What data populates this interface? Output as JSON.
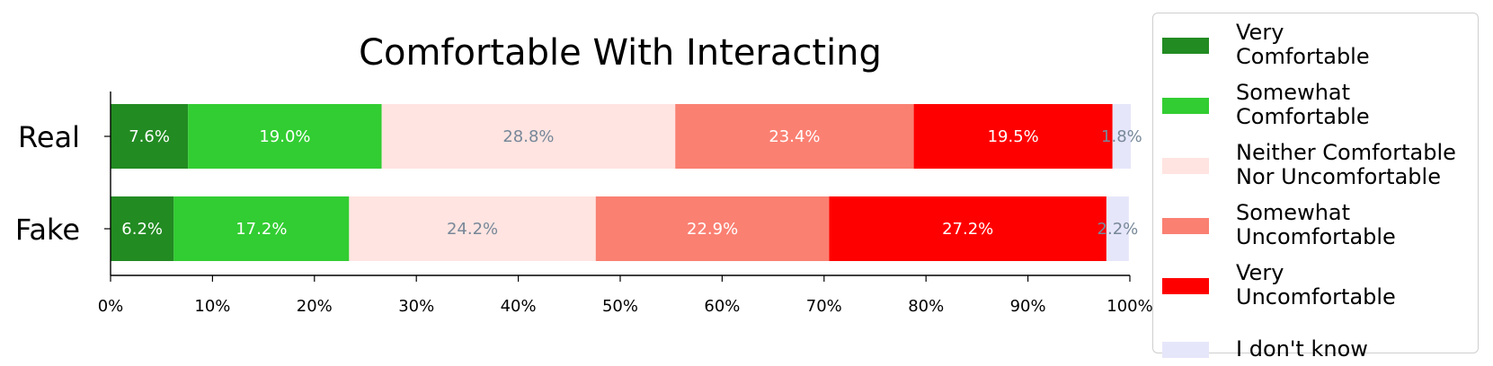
{
  "chart_data": {
    "type": "bar",
    "orientation": "horizontal",
    "stacked": true,
    "title": "Comfortable With Interacting",
    "categories": [
      "Real",
      "Fake"
    ],
    "xlim": [
      0,
      100
    ],
    "x_ticks": [
      "0%",
      "10%",
      "20%",
      "30%",
      "40%",
      "50%",
      "60%",
      "70%",
      "80%",
      "90%",
      "100%"
    ],
    "grid": false,
    "legend_position": "right",
    "series": [
      {
        "name": "Very\nComfortable",
        "color": "#228b22",
        "text_color": "#ffffff",
        "values": [
          7.6,
          6.2
        ],
        "labels": [
          "7.6%",
          "6.2%"
        ]
      },
      {
        "name": "Somewhat\nComfortable",
        "color": "#32cd32",
        "text_color": "#ffffff",
        "values": [
          19.0,
          17.2
        ],
        "labels": [
          "19.0%",
          "17.2%"
        ]
      },
      {
        "name": "Neither Comfortable\nNor Uncomfortable",
        "color": "#ffe4e1",
        "text_color": "#778899",
        "values": [
          28.8,
          24.2
        ],
        "labels": [
          "28.8%",
          "24.2%"
        ]
      },
      {
        "name": "Somewhat\nUncomfortable",
        "color": "#fa8072",
        "text_color": "#ffffff",
        "values": [
          23.4,
          22.9
        ],
        "labels": [
          "23.4%",
          "22.9%"
        ]
      },
      {
        "name": "Very\nUncomfortable",
        "color": "#ff0000",
        "text_color": "#ffffff",
        "values": [
          19.5,
          27.2
        ],
        "labels": [
          "19.5%",
          "27.2%"
        ]
      },
      {
        "name": "I don't know",
        "color": "#e6e6fa",
        "text_color": "#778899",
        "values": [
          1.8,
          2.2
        ],
        "labels": [
          "1.8%",
          "2.2%"
        ]
      }
    ]
  }
}
